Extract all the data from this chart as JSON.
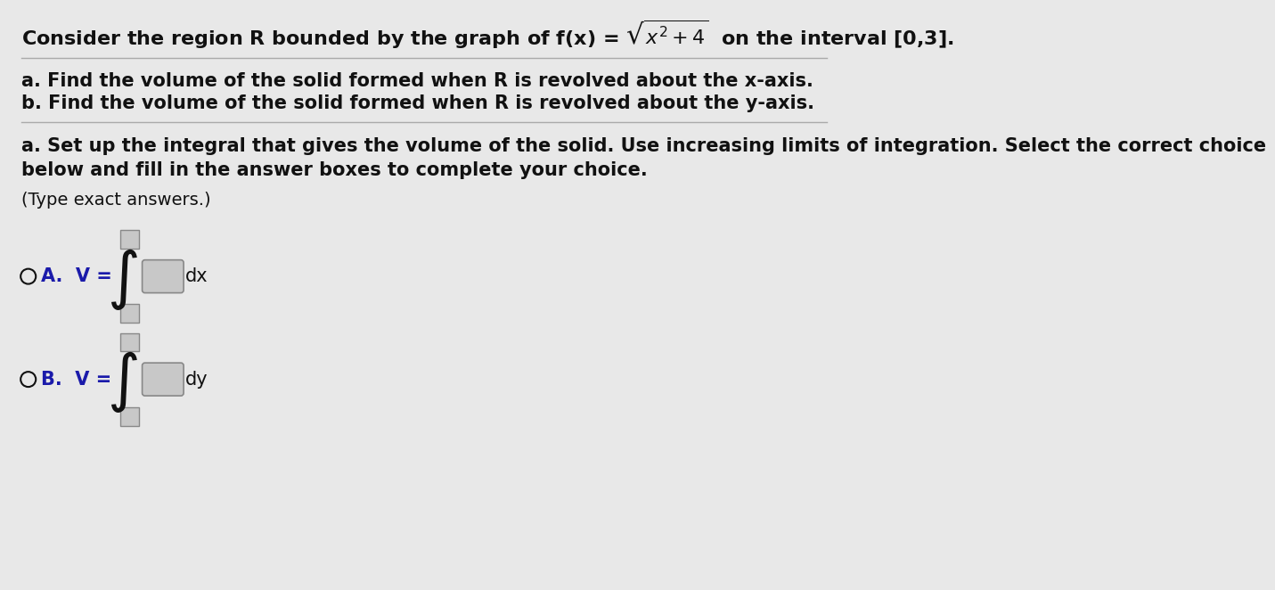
{
  "bg_color": "#e8e8e8",
  "text_color": "#111111",
  "label_color": "#1a1aaa",
  "title_line": "Consider the region R bounded by the graph of f(x) = $\\sqrt{x^2+4}$  on the interval [0,3].",
  "part_a_line": "a. Find the volume of the solid formed when R is revolved about the x-axis.",
  "part_b_line": "b. Find the volume of the solid formed when R is revolved about the y-axis.",
  "instruction_line1": "a. Set up the integral that gives the volume of the solid. Use increasing limits of integration. Select the correct choice",
  "instruction_line2": "below and fill in the answer boxes to complete your choice.",
  "type_exact": "(Type exact answers.)",
  "dx_label": "dx",
  "dy_label": "dy",
  "box_fill_color": "#c8c8c8",
  "box_edge_color": "#888888",
  "separator_color": "#aaaaaa",
  "font_size_title": 16,
  "font_size_body": 15,
  "font_size_instruction": 15,
  "font_size_type": 14,
  "font_size_choice": 15,
  "font_size_integral": 36,
  "font_size_dxdy": 15
}
